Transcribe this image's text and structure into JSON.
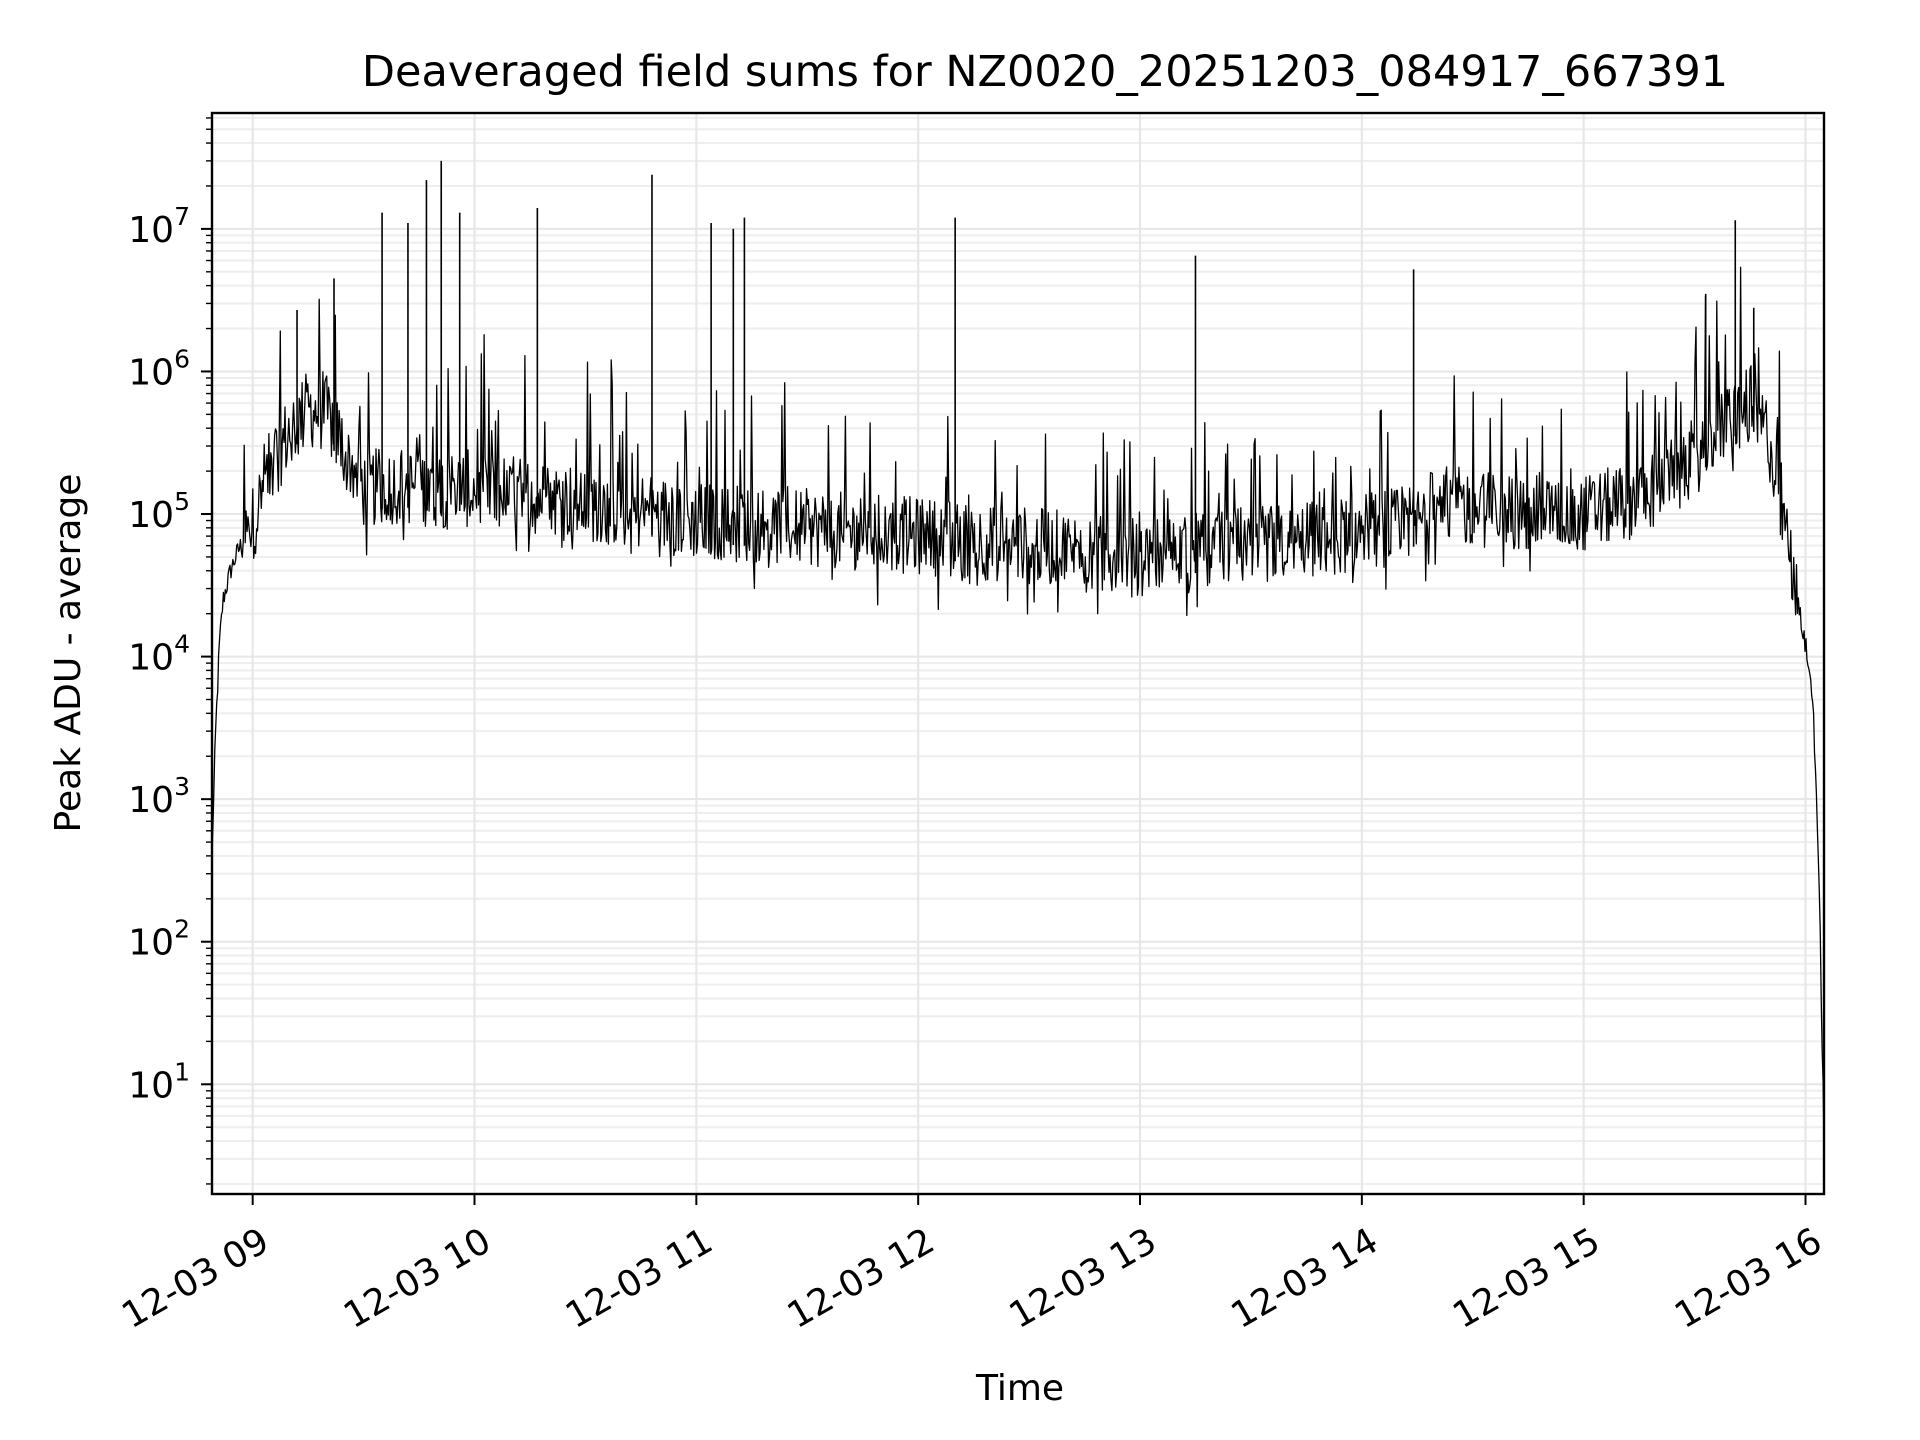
{
  "chart_data": {
    "type": "line",
    "title": "Deaveraged field sums for NZ0020_20251203_084917_667391",
    "xlabel": "Time",
    "ylabel": "Peak ADU - average",
    "yscale": "log",
    "xlim": [
      "12-03 08:49",
      "12-03 16:05"
    ],
    "ylim": [
      1.7,
      65000000
    ],
    "grid": true,
    "x_ticks": [
      "12-03 09",
      "12-03 10",
      "12-03 11",
      "12-03 12",
      "12-03 13",
      "12-03 14",
      "12-03 15",
      "12-03 16"
    ],
    "y_ticks": [
      {
        "base": "10",
        "exp": "1"
      },
      {
        "base": "10",
        "exp": "2"
      },
      {
        "base": "10",
        "exp": "3"
      },
      {
        "base": "10",
        "exp": "4"
      },
      {
        "base": "10",
        "exp": "5"
      },
      {
        "base": "10",
        "exp": "6"
      },
      {
        "base": "10",
        "exp": "7"
      }
    ],
    "series": [
      {
        "color": "#000000",
        "x": [
          "12-03 08:49",
          "12-03 08:50",
          "12-03 08:51",
          "12-03 08:52",
          "12-03 08:54",
          "12-03 08:56",
          "12-03 09:00",
          "12-03 09:05",
          "12-03 09:10",
          "12-03 09:15",
          "12-03 09:20",
          "12-03 09:25",
          "12-03 09:30",
          "12-03 09:40",
          "12-03 09:50",
          "12-03 10:00",
          "12-03 10:10",
          "12-03 10:20",
          "12-03 10:30",
          "12-03 10:40",
          "12-03 10:50",
          "12-03 11:00",
          "12-03 11:15",
          "12-03 11:30",
          "12-03 11:45",
          "12-03 12:00",
          "12-03 12:15",
          "12-03 12:30",
          "12-03 12:45",
          "12-03 13:00",
          "12-03 13:15",
          "12-03 13:30",
          "12-03 13:45",
          "12-03 14:00",
          "12-03 14:15",
          "12-03 14:20",
          "12-03 14:30",
          "12-03 14:45",
          "12-03 15:00",
          "12-03 15:15",
          "12-03 15:30",
          "12-03 15:40",
          "12-03 15:45",
          "12-03 15:50",
          "12-03 15:55",
          "12-03 16:00",
          "12-03 16:02",
          "12-03 16:03",
          "12-03 16:04",
          "12-03 16:05"
        ],
        "y": [
          400,
          3000,
          12000,
          25000,
          40000,
          55000,
          85000,
          220000,
          380000,
          550000,
          500000,
          280000,
          150000,
          160000,
          150000,
          150000,
          140000,
          130000,
          120000,
          110000,
          100000,
          90000,
          85000,
          80000,
          75000,
          70000,
          65000,
          60000,
          55000,
          50000,
          55000,
          60000,
          65000,
          75000,
          85000,
          120000,
          110000,
          100000,
          100000,
          130000,
          250000,
          480000,
          600000,
          350000,
          60000,
          12000,
          5000,
          1000,
          100,
          4
        ],
        "spikes": [
          {
            "x": "12-03 09:12",
            "y": 2700000
          },
          {
            "x": "12-03 09:22",
            "y": 4500000
          },
          {
            "x": "12-03 09:35",
            "y": 13000000
          },
          {
            "x": "12-03 09:42",
            "y": 11000000
          },
          {
            "x": "12-03 09:47",
            "y": 22000000
          },
          {
            "x": "12-03 09:51",
            "y": 30000000
          },
          {
            "x": "12-03 09:56",
            "y": 13000000
          },
          {
            "x": "12-03 10:17",
            "y": 14000000
          },
          {
            "x": "12-03 10:48",
            "y": 24000000
          },
          {
            "x": "12-03 11:04",
            "y": 11000000
          },
          {
            "x": "12-03 11:10",
            "y": 10000000
          },
          {
            "x": "12-03 11:13",
            "y": 12000000
          },
          {
            "x": "12-03 12:10",
            "y": 12000000
          },
          {
            "x": "12-03 13:15",
            "y": 6500000
          },
          {
            "x": "12-03 14:14",
            "y": 5200000
          },
          {
            "x": "12-03 15:33",
            "y": 3500000
          },
          {
            "x": "12-03 15:41",
            "y": 11500000
          },
          {
            "x": "12-03 15:46",
            "y": 2800000
          }
        ]
      }
    ]
  }
}
